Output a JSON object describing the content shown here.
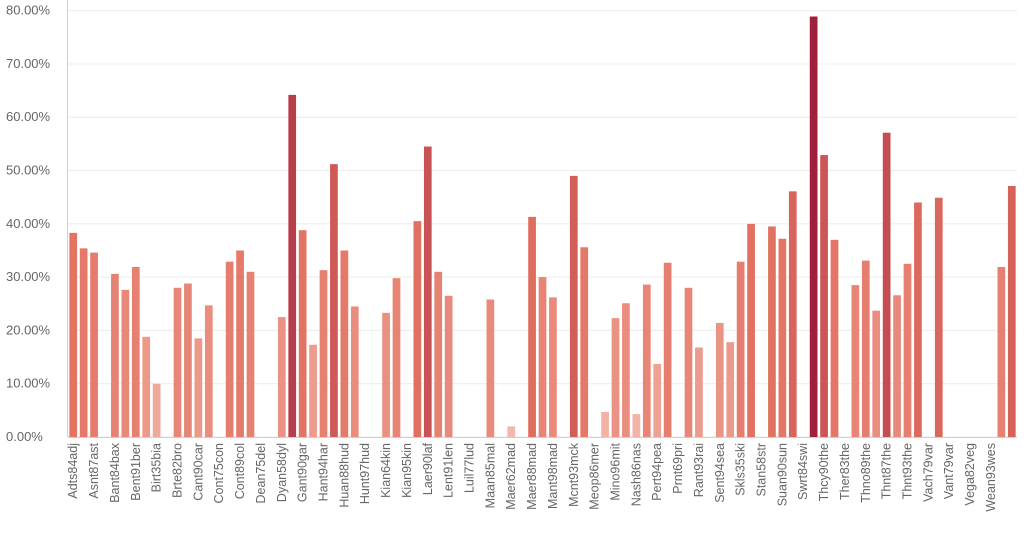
{
  "chart_data": {
    "type": "bar",
    "title": "",
    "xlabel": "",
    "ylabel": "",
    "ylim": [
      0,
      0.82
    ],
    "grid": true,
    "legend": "none",
    "y_ticks": [
      {
        "value": 0.0,
        "label": "0.00%"
      },
      {
        "value": 0.1,
        "label": "10.00%"
      },
      {
        "value": 0.2,
        "label": "20.00%"
      },
      {
        "value": 0.3,
        "label": "30.00%"
      },
      {
        "value": 0.4,
        "label": "40.00%"
      },
      {
        "value": 0.5,
        "label": "50.00%"
      },
      {
        "value": 0.6,
        "label": "60.00%"
      },
      {
        "value": 0.7,
        "label": "70.00%"
      },
      {
        "value": 0.8,
        "label": "80.00%"
      }
    ],
    "color_scale": {
      "low": "#f3b8aa",
      "mid": "#e27060",
      "high": "#9e1f3e"
    },
    "bars": [
      {
        "value": 0.383
      },
      {
        "value": 0.354
      },
      {
        "value": 0.346
      },
      {
        "value": null
      },
      {
        "value": 0.306
      },
      {
        "value": 0.276
      },
      {
        "value": 0.319
      },
      {
        "value": 0.188
      },
      {
        "value": 0.1
      },
      {
        "value": null
      },
      {
        "value": 0.28
      },
      {
        "value": 0.288
      },
      {
        "value": 0.185
      },
      {
        "value": 0.247
      },
      {
        "value": null
      },
      {
        "value": 0.329
      },
      {
        "value": 0.35
      },
      {
        "value": 0.31
      },
      {
        "value": null
      },
      {
        "value": null
      },
      {
        "value": 0.225
      },
      {
        "value": 0.642
      },
      {
        "value": 0.388
      },
      {
        "value": 0.173
      },
      {
        "value": 0.313
      },
      {
        "value": 0.512
      },
      {
        "value": 0.35
      },
      {
        "value": 0.245
      },
      {
        "value": null
      },
      {
        "value": null
      },
      {
        "value": 0.233
      },
      {
        "value": 0.298
      },
      {
        "value": null
      },
      {
        "value": 0.405
      },
      {
        "value": 0.545
      },
      {
        "value": 0.31
      },
      {
        "value": 0.265
      },
      {
        "value": null
      },
      {
        "value": null
      },
      {
        "value": null
      },
      {
        "value": 0.258
      },
      {
        "value": null
      },
      {
        "value": 0.02
      },
      {
        "value": null
      },
      {
        "value": 0.413
      },
      {
        "value": 0.3
      },
      {
        "value": 0.262
      },
      {
        "value": null
      },
      {
        "value": 0.49
      },
      {
        "value": 0.356
      },
      {
        "value": null
      },
      {
        "value": 0.047
      },
      {
        "value": 0.223
      },
      {
        "value": 0.251
      },
      {
        "value": 0.043
      },
      {
        "value": 0.286
      },
      {
        "value": 0.137
      },
      {
        "value": 0.327
      },
      {
        "value": null
      },
      {
        "value": 0.28
      },
      {
        "value": 0.168
      },
      {
        "value": null
      },
      {
        "value": 0.214
      },
      {
        "value": 0.178
      },
      {
        "value": 0.329
      },
      {
        "value": 0.4
      },
      {
        "value": null
      },
      {
        "value": 0.395
      },
      {
        "value": 0.372
      },
      {
        "value": 0.461
      },
      {
        "value": null
      },
      {
        "value": 0.789
      },
      {
        "value": 0.529
      },
      {
        "value": 0.37
      },
      {
        "value": null
      },
      {
        "value": 0.285
      },
      {
        "value": 0.331
      },
      {
        "value": 0.237
      },
      {
        "value": 0.571
      },
      {
        "value": 0.266
      },
      {
        "value": 0.325
      },
      {
        "value": 0.44
      },
      {
        "value": null
      },
      {
        "value": 0.449
      },
      {
        "value": null
      },
      {
        "value": null
      },
      {
        "value": null
      },
      {
        "value": null
      },
      {
        "value": null
      },
      {
        "value": 0.319
      },
      {
        "value": 0.471
      }
    ],
    "category_labels": [
      {
        "label": "Adts84adj",
        "bar_index": 0
      },
      {
        "label": "Asnt87ast",
        "bar_index": 2
      },
      {
        "label": "Bant84bax",
        "bar_index": 4
      },
      {
        "label": "Bent91ber",
        "bar_index": 6
      },
      {
        "label": "Birt35bia",
        "bar_index": 8
      },
      {
        "label": "Brte82bro",
        "bar_index": 10
      },
      {
        "label": "Cant90car",
        "bar_index": 12
      },
      {
        "label": "Cont75con",
        "bar_index": 14
      },
      {
        "label": "Cont89col",
        "bar_index": 16
      },
      {
        "label": "Dean75del",
        "bar_index": 18
      },
      {
        "label": "Dyan58dyl",
        "bar_index": 20
      },
      {
        "label": "Gant90gar",
        "bar_index": 22
      },
      {
        "label": "Hant94har",
        "bar_index": 24
      },
      {
        "label": "Huan88hud",
        "bar_index": 26
      },
      {
        "label": "Hunt97hud",
        "bar_index": 28
      },
      {
        "label": "Kian64kin",
        "bar_index": 30
      },
      {
        "label": "Kian95kin",
        "bar_index": 32
      },
      {
        "label": "Laer90laf",
        "bar_index": 34
      },
      {
        "label": "Lent91len",
        "bar_index": 36
      },
      {
        "label": "Luil77lud",
        "bar_index": 38
      },
      {
        "label": "Maan85mal",
        "bar_index": 40
      },
      {
        "label": "Maer62mad",
        "bar_index": 42
      },
      {
        "label": "Maer88mad",
        "bar_index": 44
      },
      {
        "label": "Mant98mad",
        "bar_index": 46
      },
      {
        "label": "Mcnt93mck",
        "bar_index": 48
      },
      {
        "label": "Meop86mer",
        "bar_index": 50
      },
      {
        "label": "Mino96mit",
        "bar_index": 52
      },
      {
        "label": "Nash86nas",
        "bar_index": 54
      },
      {
        "label": "Pert94pea",
        "bar_index": 56
      },
      {
        "label": "Prnt69pri",
        "bar_index": 58
      },
      {
        "label": "Rant93rai",
        "bar_index": 60
      },
      {
        "label": "Sent94sea",
        "bar_index": 62
      },
      {
        "label": "Skls35ski",
        "bar_index": 64
      },
      {
        "label": "Stan58str",
        "bar_index": 66
      },
      {
        "label": "Suan90sun",
        "bar_index": 68
      },
      {
        "label": "Swrt84swi",
        "bar_index": 70
      },
      {
        "label": "Thcy90the",
        "bar_index": 72
      },
      {
        "label": "Ther83the",
        "bar_index": 74
      },
      {
        "label": "Thno89the",
        "bar_index": 76
      },
      {
        "label": "Thnt87the",
        "bar_index": 78
      },
      {
        "label": "Thnt93the",
        "bar_index": 80
      },
      {
        "label": "Vach79var",
        "bar_index": 82
      },
      {
        "label": "Vant79var",
        "bar_index": 84
      },
      {
        "label": "Vega82veg",
        "bar_index": 86
      },
      {
        "label": "Wean93wes",
        "bar_index": 88
      }
    ]
  }
}
